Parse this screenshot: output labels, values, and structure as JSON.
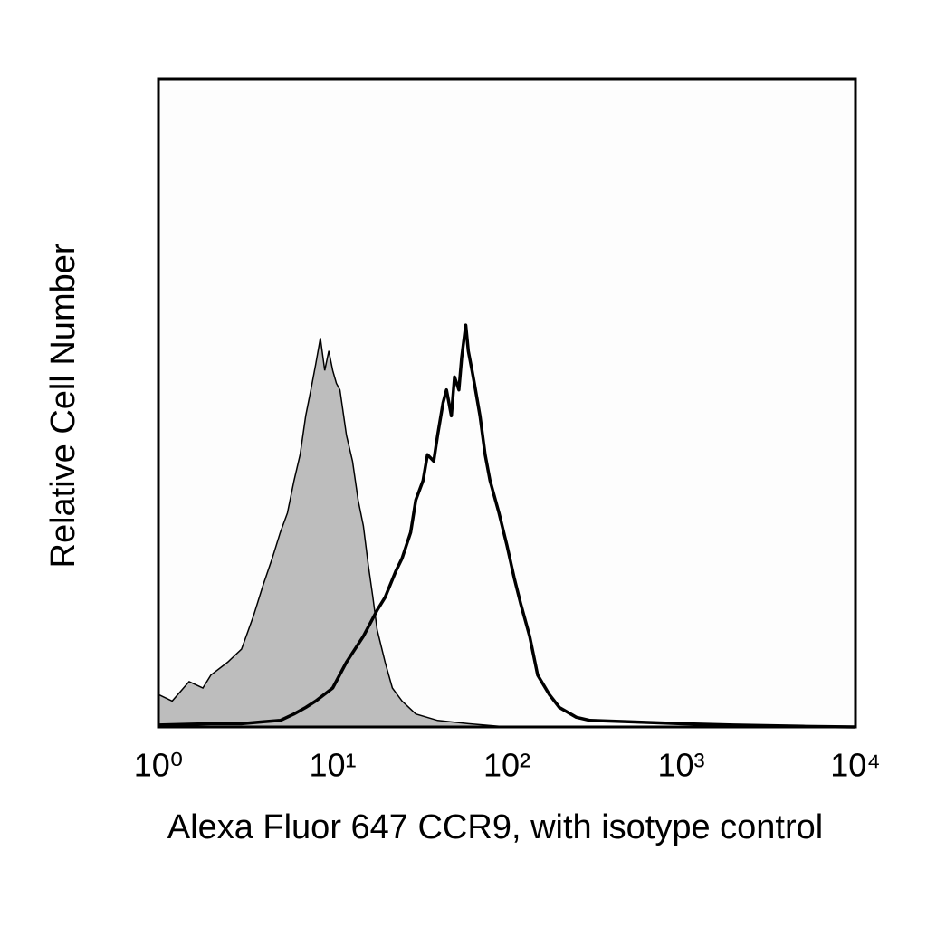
{
  "chart_data": {
    "type": "histogram-overlay",
    "x_label": "Alexa Fluor 647 CCR9, with isotype control",
    "y_label": "Relative Cell Number",
    "xscale": "log",
    "xlim": [
      1,
      10000
    ],
    "ylim": [
      0,
      100
    ],
    "xticks": [
      {
        "value": 1,
        "label": "10⁰"
      },
      {
        "value": 10,
        "label": "10¹"
      },
      {
        "value": 100,
        "label": "10²"
      },
      {
        "value": 1000,
        "label": "10³"
      },
      {
        "value": 10000,
        "label": "10⁴"
      }
    ],
    "series": [
      {
        "color": "#bdbdbd",
        "fill": true,
        "x": [
          1,
          1.2,
          1.5,
          1.8,
          2,
          2.5,
          3,
          3.5,
          4,
          4.5,
          5,
          5.5,
          6,
          6.5,
          7,
          7.5,
          8,
          8.5,
          9,
          9.5,
          10,
          10.5,
          11,
          12,
          13,
          14,
          15,
          16,
          17,
          18,
          20,
          22,
          25,
          30,
          40,
          60,
          100
        ],
        "values": [
          5,
          4,
          7,
          6,
          8,
          10,
          12,
          17,
          22,
          26,
          30,
          33,
          38,
          42,
          48,
          52,
          56,
          60,
          55,
          58,
          55,
          53,
          52,
          45,
          41,
          35,
          31,
          25,
          20,
          15,
          10,
          6,
          4,
          2,
          1,
          0.5,
          0
        ]
      },
      {
        "color": "#000000",
        "fill": false,
        "x": [
          1,
          2,
          3,
          4,
          5,
          6,
          7,
          8,
          10,
          12,
          15,
          18,
          20,
          23,
          25,
          28,
          30,
          33,
          35,
          38,
          40,
          43,
          45,
          48,
          50,
          53,
          55,
          58,
          60,
          63,
          65,
          70,
          75,
          80,
          90,
          100,
          110,
          120,
          135,
          150,
          175,
          200,
          250,
          300,
          500,
          1000,
          2000,
          5000,
          10000
        ],
        "values": [
          0.3,
          0.5,
          0.5,
          0.8,
          1,
          2,
          3,
          4,
          6,
          10,
          14,
          18,
          20,
          24,
          26,
          30,
          35,
          38,
          42,
          41,
          45,
          50,
          52,
          48,
          54,
          52,
          57,
          62,
          58,
          55,
          53,
          48,
          42,
          38,
          33,
          28,
          23,
          19,
          14,
          8,
          5,
          3,
          1.5,
          1,
          0.8,
          0.5,
          0.3,
          0.1,
          0
        ]
      }
    ]
  }
}
